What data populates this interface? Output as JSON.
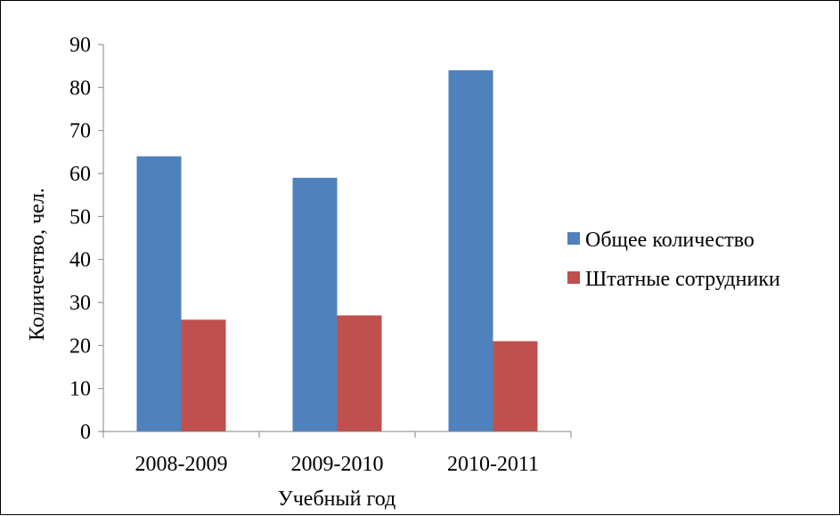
{
  "chart_data": {
    "type": "bar",
    "title": "",
    "xlabel": "Учебный год",
    "ylabel": "Количечтво, чел.",
    "categories": [
      "2008-2009",
      "2009-2010",
      "2010-2011"
    ],
    "series": [
      {
        "name": "Общее количество",
        "values": [
          64,
          59,
          84
        ],
        "color": "#4F81BD"
      },
      {
        "name": "Штатные сотрудники",
        "values": [
          26,
          27,
          21
        ],
        "color": "#C0504D"
      }
    ],
    "ylim": [
      0,
      90
    ],
    "yticks": [
      "0",
      "10",
      "20",
      "30",
      "40",
      "50",
      "60",
      "70",
      "80",
      "90"
    ],
    "grid": false,
    "legend_position": "right"
  }
}
